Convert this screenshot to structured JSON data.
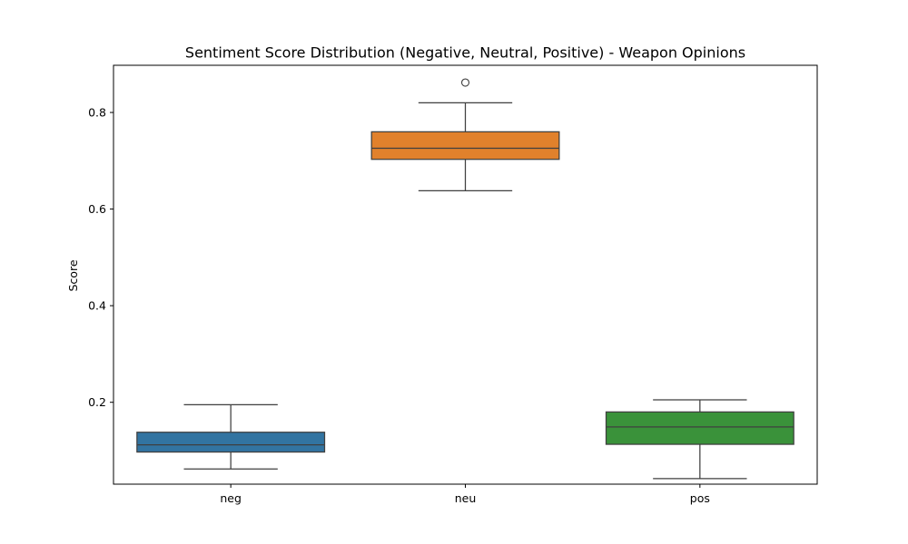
{
  "chart_data": {
    "type": "box",
    "title": "Sentiment Score Distribution (Negative, Neutral, Positive) - Weapon Opinions",
    "xlabel": "",
    "ylabel": "Score",
    "ylim": [
      0.0,
      0.9
    ],
    "yticks": [
      0.2,
      0.4,
      0.6,
      0.8
    ],
    "ytick_labels": [
      "0.2",
      "0.4",
      "0.6",
      "0.8"
    ],
    "grid": false,
    "legend": "none",
    "categories": [
      "neg",
      "neu",
      "pos"
    ],
    "boxes": [
      {
        "category": "neg",
        "color": "#3274a1",
        "whisker_low": 0.062,
        "q1": 0.097,
        "median": 0.112,
        "q3": 0.138,
        "whisker_high": 0.195,
        "outliers": []
      },
      {
        "category": "neu",
        "color": "#e1812c",
        "whisker_low": 0.638,
        "q1": 0.703,
        "median": 0.726,
        "q3": 0.76,
        "whisker_high": 0.82,
        "outliers": [
          0.862
        ]
      },
      {
        "category": "pos",
        "color": "#3a923a",
        "whisker_low": 0.042,
        "q1": 0.113,
        "median": 0.149,
        "q3": 0.18,
        "whisker_high": 0.205,
        "outliers": []
      }
    ],
    "edge_color": "#3f3f3f"
  }
}
